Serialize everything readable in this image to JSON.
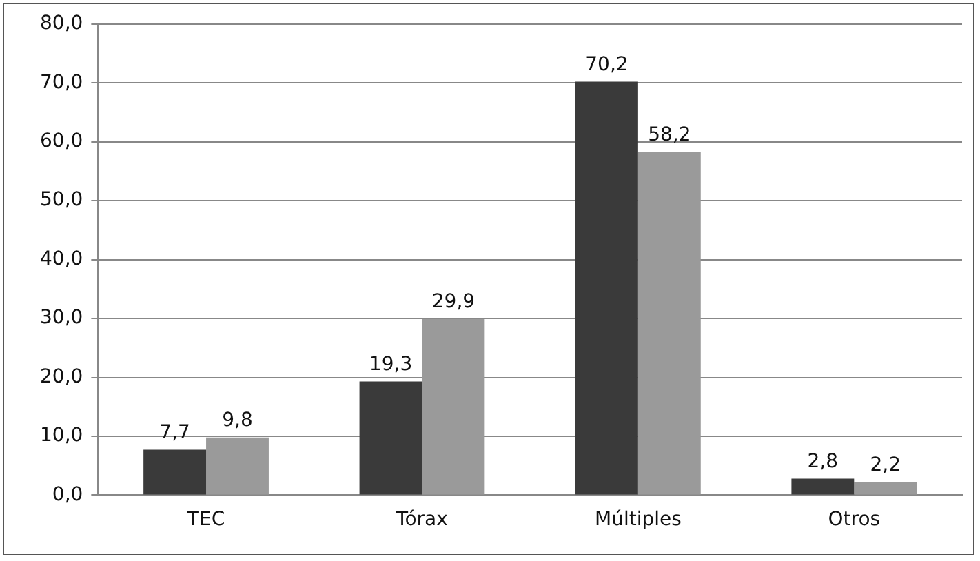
{
  "chart_data": {
    "type": "bar",
    "categories": [
      "TEC",
      "Tórax",
      "Múltiples",
      "Otros"
    ],
    "series": [
      {
        "color": "#3a3a3a",
        "values": [
          7.7,
          19.3,
          70.2,
          2.8
        ],
        "value_labels": [
          "7,7",
          "19,3",
          "70,2",
          "2,8"
        ]
      },
      {
        "color": "#9a9a9a",
        "values": [
          9.8,
          29.9,
          58.2,
          2.2
        ],
        "value_labels": [
          "9,8",
          "29,9",
          "58,2",
          "2,2"
        ]
      }
    ],
    "ylim": [
      0,
      80
    ],
    "yticks": [
      {
        "value": 0,
        "label": "0,0"
      },
      {
        "value": 10,
        "label": "10,0"
      },
      {
        "value": 20,
        "label": "20,0"
      },
      {
        "value": 30,
        "label": "30,0"
      },
      {
        "value": 40,
        "label": "40,0"
      },
      {
        "value": 50,
        "label": "50,0"
      },
      {
        "value": 60,
        "label": "60,0"
      },
      {
        "value": 70,
        "label": "70,0"
      },
      {
        "value": 80,
        "label": "80,0"
      }
    ],
    "grid": "y",
    "legend": false
  }
}
